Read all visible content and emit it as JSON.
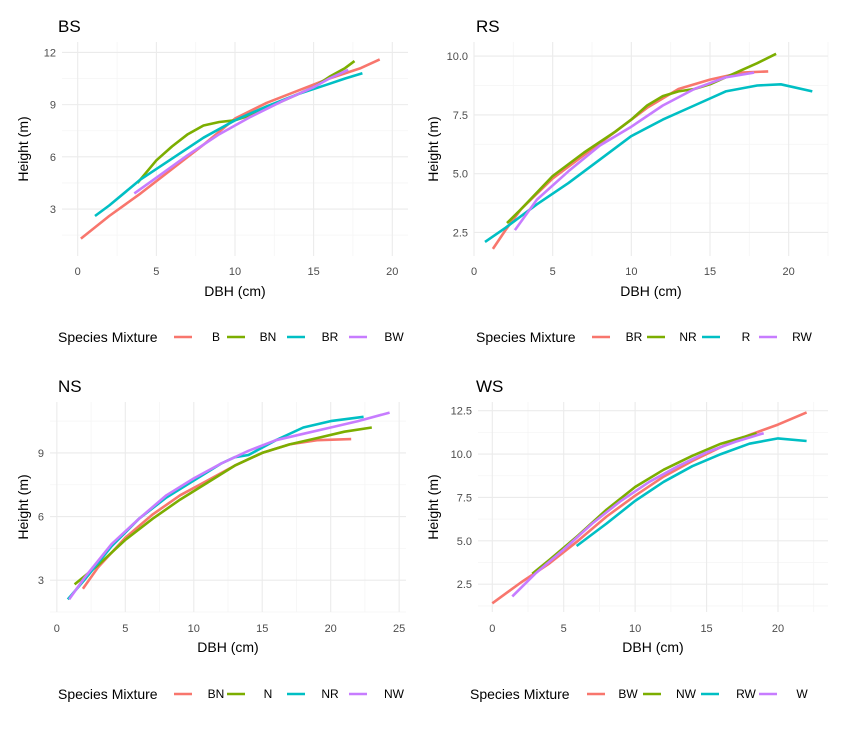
{
  "colors": {
    "red": "#F8766D",
    "olive": "#7CAE00",
    "teal": "#00BFC4",
    "purple": "#C77CFF",
    "grid_major": "#ebebeb",
    "grid_minor": "#f5f5f5"
  },
  "chart_data": [
    {
      "type": "line",
      "title": "BS",
      "xlabel": "DBH (cm)",
      "ylabel": "Height (m)",
      "xlim": [
        -1,
        21
      ],
      "ylim": [
        0.3,
        12.6
      ],
      "xticks": [
        0,
        5,
        10,
        15,
        20
      ],
      "yticks": [
        3,
        6,
        9,
        12
      ],
      "xtick_labels": [
        "0",
        "5",
        "10",
        "15",
        "20"
      ],
      "ytick_labels": [
        "3",
        "6",
        "9",
        "12"
      ],
      "legend_title": "Species Mixture",
      "legend_position": "bottom",
      "series": [
        {
          "name": "B",
          "color": "#F8766D",
          "points": [
            [
              0.2,
              1.3
            ],
            [
              2,
              2.6
            ],
            [
              4,
              3.9
            ],
            [
              6,
              5.3
            ],
            [
              8,
              6.7
            ],
            [
              10,
              8.2
            ],
            [
              12,
              9.1
            ],
            [
              14,
              9.8
            ],
            [
              16,
              10.5
            ],
            [
              18,
              11.1
            ],
            [
              19.2,
              11.6
            ]
          ]
        },
        {
          "name": "BN",
          "color": "#7CAE00",
          "points": [
            [
              3.8,
              4.5
            ],
            [
              5,
              5.8
            ],
            [
              6,
              6.6
            ],
            [
              7,
              7.3
            ],
            [
              8,
              7.8
            ],
            [
              9,
              8.0
            ],
            [
              10,
              8.1
            ],
            [
              11,
              8.4
            ],
            [
              12,
              8.8
            ],
            [
              13,
              9.2
            ],
            [
              14,
              9.6
            ],
            [
              15,
              10.0
            ],
            [
              16,
              10.6
            ],
            [
              17,
              11.1
            ],
            [
              17.6,
              11.5
            ]
          ]
        },
        {
          "name": "BR",
          "color": "#00BFC4",
          "points": [
            [
              1.1,
              2.6
            ],
            [
              2,
              3.2
            ],
            [
              4,
              4.7
            ],
            [
              6,
              5.9
            ],
            [
              8,
              7.1
            ],
            [
              10,
              8.1
            ],
            [
              12,
              8.9
            ],
            [
              14,
              9.6
            ],
            [
              16,
              10.2
            ],
            [
              17,
              10.5
            ],
            [
              18.1,
              10.8
            ]
          ]
        },
        {
          "name": "BW",
          "color": "#C77CFF",
          "points": [
            [
              3.6,
              3.9
            ],
            [
              5,
              4.8
            ],
            [
              7,
              6.1
            ],
            [
              9,
              7.3
            ],
            [
              11,
              8.3
            ],
            [
              13,
              9.2
            ],
            [
              15,
              10.0
            ],
            [
              16,
              10.5
            ],
            [
              17.2,
              11.0
            ]
          ]
        }
      ]
    },
    {
      "type": "line",
      "title": "RS",
      "xlabel": "DBH (cm)",
      "ylabel": "Height (m)",
      "xlim": [
        0,
        22.5
      ],
      "ylim": [
        1.5,
        10.6
      ],
      "xticks": [
        0,
        5,
        10,
        15,
        20
      ],
      "yticks": [
        2.5,
        5.0,
        7.5,
        10.0
      ],
      "xtick_labels": [
        "0",
        "5",
        "10",
        "15",
        "20"
      ],
      "ytick_labels": [
        "2.5",
        "5.0",
        "7.5",
        "10.0"
      ],
      "legend_title": "Species Mixture",
      "legend_position": "bottom",
      "series": [
        {
          "name": "BR",
          "color": "#F8766D",
          "points": [
            [
              1.2,
              1.8
            ],
            [
              2,
              2.6
            ],
            [
              3,
              3.5
            ],
            [
              5,
              4.8
            ],
            [
              7,
              5.8
            ],
            [
              9,
              6.8
            ],
            [
              11,
              7.8
            ],
            [
              13,
              8.6
            ],
            [
              15,
              9.0
            ],
            [
              17,
              9.3
            ],
            [
              18.7,
              9.35
            ]
          ]
        },
        {
          "name": "NR",
          "color": "#7CAE00",
          "points": [
            [
              2.1,
              2.9
            ],
            [
              3,
              3.5
            ],
            [
              5,
              4.9
            ],
            [
              7,
              5.9
            ],
            [
              9,
              6.8
            ],
            [
              10,
              7.3
            ],
            [
              11,
              7.9
            ],
            [
              12,
              8.3
            ],
            [
              13,
              8.5
            ],
            [
              14,
              8.6
            ],
            [
              15,
              8.8
            ],
            [
              16,
              9.1
            ],
            [
              17,
              9.4
            ],
            [
              18,
              9.7
            ],
            [
              19.2,
              10.1
            ]
          ]
        },
        {
          "name": "R",
          "color": "#00BFC4",
          "points": [
            [
              0.7,
              2.1
            ],
            [
              2,
              2.7
            ],
            [
              4,
              3.7
            ],
            [
              6,
              4.6
            ],
            [
              8,
              5.6
            ],
            [
              10,
              6.6
            ],
            [
              12,
              7.3
            ],
            [
              14,
              7.9
            ],
            [
              16,
              8.5
            ],
            [
              18,
              8.75
            ],
            [
              19.5,
              8.8
            ],
            [
              21.5,
              8.5
            ]
          ]
        },
        {
          "name": "RW",
          "color": "#C77CFF",
          "points": [
            [
              2.6,
              2.6
            ],
            [
              4,
              3.9
            ],
            [
              6,
              5.1
            ],
            [
              8,
              6.2
            ],
            [
              10,
              7.0
            ],
            [
              12,
              7.9
            ],
            [
              14,
              8.6
            ],
            [
              16,
              9.1
            ],
            [
              17.8,
              9.3
            ]
          ]
        }
      ]
    },
    {
      "type": "line",
      "title": "NS",
      "xlabel": "DBH (cm)",
      "ylabel": "Height (m)",
      "xlim": [
        -0.5,
        25.5
      ],
      "ylim": [
        1.5,
        11.4
      ],
      "xticks": [
        0,
        5,
        10,
        15,
        20,
        25
      ],
      "yticks": [
        3,
        6,
        9
      ],
      "xtick_labels": [
        "0",
        "5",
        "10",
        "15",
        "20",
        "25"
      ],
      "ytick_labels": [
        "3",
        "6",
        "9"
      ],
      "legend_title": "Species Mixture",
      "legend_position": "bottom",
      "series": [
        {
          "name": "BN",
          "color": "#F8766D",
          "points": [
            [
              1.9,
              2.6
            ],
            [
              3,
              3.6
            ],
            [
              5,
              5.0
            ],
            [
              7,
              6.1
            ],
            [
              9,
              7.0
            ],
            [
              11,
              7.7
            ],
            [
              13,
              8.4
            ],
            [
              15,
              9.0
            ],
            [
              17,
              9.4
            ],
            [
              19,
              9.6
            ],
            [
              21.5,
              9.65
            ]
          ]
        },
        {
          "name": "N",
          "color": "#7CAE00",
          "points": [
            [
              1.3,
              2.8
            ],
            [
              3,
              3.7
            ],
            [
              5,
              4.9
            ],
            [
              7,
              5.9
            ],
            [
              9,
              6.8
            ],
            [
              11,
              7.6
            ],
            [
              13,
              8.4
            ],
            [
              15,
              9.0
            ],
            [
              17,
              9.4
            ],
            [
              19,
              9.7
            ],
            [
              21,
              10.0
            ],
            [
              23,
              10.2
            ]
          ]
        },
        {
          "name": "NR",
          "color": "#00BFC4",
          "points": [
            [
              0.8,
              2.1
            ],
            [
              2,
              3.0
            ],
            [
              4,
              4.6
            ],
            [
              6,
              5.9
            ],
            [
              8,
              6.9
            ],
            [
              10,
              7.7
            ],
            [
              12,
              8.5
            ],
            [
              13,
              8.8
            ],
            [
              14,
              8.9
            ],
            [
              16,
              9.6
            ],
            [
              18,
              10.2
            ],
            [
              20,
              10.5
            ],
            [
              22.4,
              10.7
            ]
          ]
        },
        {
          "name": "NW",
          "color": "#C77CFF",
          "points": [
            [
              0.9,
              2.1
            ],
            [
              2,
              3.1
            ],
            [
              4,
              4.7
            ],
            [
              6,
              5.9
            ],
            [
              8,
              7.0
            ],
            [
              10,
              7.8
            ],
            [
              12,
              8.5
            ],
            [
              14,
              9.1
            ],
            [
              16,
              9.6
            ],
            [
              18,
              9.9
            ],
            [
              20,
              10.2
            ],
            [
              22,
              10.5
            ],
            [
              24.3,
              10.9
            ]
          ]
        }
      ]
    },
    {
      "type": "line",
      "title": "WS",
      "xlabel": "DBH (cm)",
      "ylabel": "Height (m)",
      "xlim": [
        -1,
        23.5
      ],
      "ylim": [
        0.9,
        13.0
      ],
      "xticks": [
        0,
        5,
        10,
        15,
        20
      ],
      "yticks": [
        2.5,
        5.0,
        7.5,
        10.0,
        12.5
      ],
      "xtick_labels": [
        "0",
        "5",
        "10",
        "15",
        "20"
      ],
      "ytick_labels": [
        "2.5",
        "5.0",
        "7.5",
        "10.0",
        "12.5"
      ],
      "legend_title": "Species Mixture",
      "legend_position": "bottom",
      "series": [
        {
          "name": "BW",
          "color": "#F8766D",
          "points": [
            [
              0,
              1.4
            ],
            [
              2,
              2.6
            ],
            [
              4,
              3.7
            ],
            [
              6,
              5.0
            ],
            [
              8,
              6.4
            ],
            [
              10,
              7.6
            ],
            [
              12,
              8.7
            ],
            [
              14,
              9.6
            ],
            [
              16,
              10.4
            ],
            [
              18,
              11.1
            ],
            [
              20,
              11.7
            ],
            [
              22,
              12.4
            ]
          ]
        },
        {
          "name": "NW",
          "color": "#7CAE00",
          "points": [
            [
              2.8,
              3.1
            ],
            [
              4,
              3.9
            ],
            [
              6,
              5.3
            ],
            [
              8,
              6.8
            ],
            [
              10,
              8.1
            ],
            [
              12,
              9.1
            ],
            [
              14,
              9.9
            ],
            [
              16,
              10.6
            ],
            [
              18.5,
              11.2
            ]
          ]
        },
        {
          "name": "RW",
          "color": "#00BFC4",
          "points": [
            [
              5.9,
              4.7
            ],
            [
              8,
              6.0
            ],
            [
              10,
              7.3
            ],
            [
              12,
              8.4
            ],
            [
              14,
              9.3
            ],
            [
              16,
              10.0
            ],
            [
              18,
              10.6
            ],
            [
              20,
              10.9
            ],
            [
              22,
              10.75
            ]
          ]
        },
        {
          "name": "W",
          "color": "#C77CFF",
          "points": [
            [
              1.4,
              1.8
            ],
            [
              3,
              3.1
            ],
            [
              5,
              4.5
            ],
            [
              7,
              6.0
            ],
            [
              9,
              7.3
            ],
            [
              11,
              8.4
            ],
            [
              13,
              9.3
            ],
            [
              15,
              10.1
            ],
            [
              17,
              10.7
            ],
            [
              19,
              11.2
            ]
          ]
        }
      ]
    }
  ]
}
